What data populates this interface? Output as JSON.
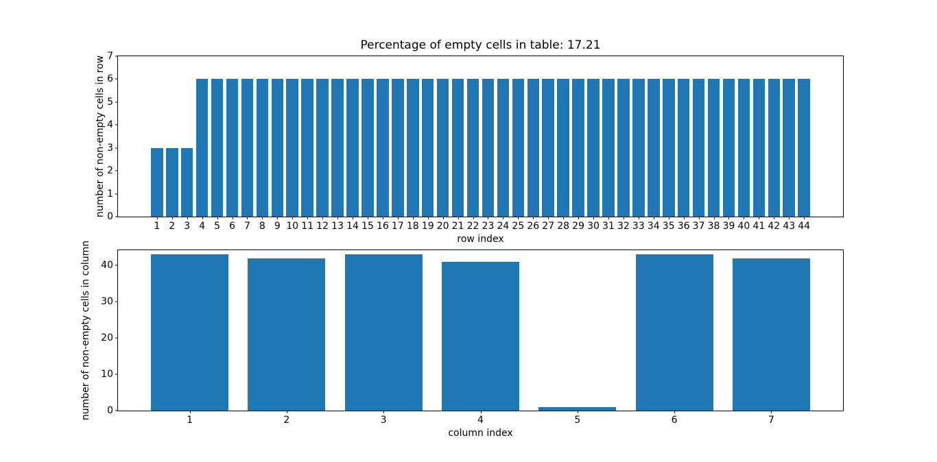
{
  "figure": {
    "background": "#ffffff",
    "text_color": "#000000",
    "bar_color": "#1f77b4"
  },
  "chart_data": [
    {
      "type": "bar",
      "title": "Percentage of empty cells in table: 17.21",
      "xlabel": "row index",
      "ylabel": "number of non-empty cells in row",
      "categories": [
        1,
        2,
        3,
        4,
        5,
        6,
        7,
        8,
        9,
        10,
        11,
        12,
        13,
        14,
        15,
        16,
        17,
        18,
        19,
        20,
        21,
        22,
        23,
        24,
        25,
        26,
        27,
        28,
        29,
        30,
        31,
        32,
        33,
        34,
        35,
        36,
        37,
        38,
        39,
        40,
        41,
        42,
        43,
        44
      ],
      "values": [
        3,
        3,
        3,
        6,
        6,
        6,
        6,
        6,
        6,
        6,
        6,
        6,
        6,
        6,
        6,
        6,
        6,
        6,
        6,
        6,
        6,
        6,
        6,
        6,
        6,
        6,
        6,
        6,
        6,
        6,
        6,
        6,
        6,
        6,
        6,
        6,
        6,
        6,
        6,
        6,
        6,
        6,
        6,
        6
      ],
      "bar_color": "#1f77b4",
      "bar_width": 0.8,
      "xlim": [
        -1.59,
        46.59
      ],
      "ylim": [
        0,
        7
      ],
      "yticks": [
        0,
        1,
        2,
        3,
        4,
        5,
        6,
        7
      ],
      "grid": false,
      "legend": null
    },
    {
      "type": "bar",
      "title": "",
      "xlabel": "column index",
      "ylabel": "number of non-empty cells in column",
      "categories": [
        1,
        2,
        3,
        4,
        5,
        6,
        7
      ],
      "values": [
        43,
        42,
        43,
        41,
        1,
        43,
        42
      ],
      "bar_color": "#1f77b4",
      "bar_width": 0.8,
      "xlim": [
        0.26,
        7.74
      ],
      "ylim": [
        0,
        44.2
      ],
      "yticks": [
        0,
        10,
        20,
        30,
        40
      ],
      "grid": false,
      "legend": null
    }
  ]
}
